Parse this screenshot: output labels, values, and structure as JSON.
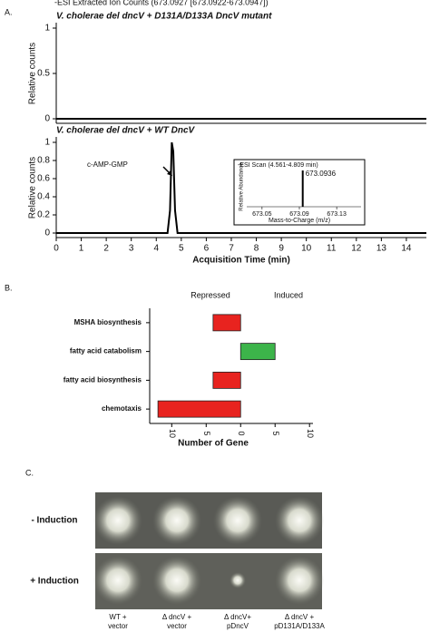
{
  "chart_data": [
    {
      "type": "line",
      "title": "-ESI Extracted Ion Counts (673.0927 [673.0922-673.0947])",
      "subtitle": "V. cholerae del dncV + D131A/D133A DncV mutant",
      "y_label": "Relative counts",
      "x": [
        0,
        14.8
      ],
      "values": [
        0,
        0
      ],
      "xlim": [
        0,
        14.8
      ],
      "ylim": [
        0,
        1
      ],
      "yticks": [
        0,
        0.5,
        1
      ]
    },
    {
      "type": "line",
      "subtitle": "V. cholerae del dncV + WT DncV",
      "y_label": "Relative counts",
      "x_label": "Acquisition Time (min)",
      "annotation": "c-AMP-GMP",
      "x": [
        0,
        4.45,
        4.55,
        4.62,
        4.68,
        4.75,
        4.85,
        14.8
      ],
      "values": [
        0,
        0,
        0.25,
        1,
        0.9,
        0.25,
        0,
        0
      ],
      "xlim": [
        0,
        14.8
      ],
      "ylim": [
        0,
        1
      ],
      "xticks": [
        0,
        1,
        2,
        3,
        4,
        5,
        6,
        7,
        8,
        9,
        10,
        11,
        12,
        13,
        14
      ],
      "yticks": [
        0,
        0.2,
        0.4,
        0.6,
        0.8,
        1
      ]
    },
    {
      "type": "stem",
      "title": "-ESI Scan (4.561-4.809 min)",
      "x_label": "Mass-to-Charge (m/z)",
      "y_label": "Relative Abundance",
      "annotation": "673.0936",
      "x": [
        673.0936
      ],
      "values": [
        1
      ],
      "xlim": [
        673.02,
        673.16
      ],
      "ylim": [
        0,
        1.1
      ],
      "xticks": [
        673.05,
        673.09,
        673.13
      ]
    },
    {
      "type": "bar",
      "orientation": "horizontal",
      "x_label": "Number of Gene",
      "annotations": [
        "Repressed",
        "Induced"
      ],
      "categories": [
        "MSHA biosynthesis",
        "fatty acid catabolism",
        "fatty acid biosynthesis",
        "chemotaxis"
      ],
      "values": [
        -4,
        5,
        -4,
        -12
      ],
      "colors": [
        "#e8231f",
        "#3cb44a",
        "#e8231f",
        "#e8231f"
      ],
      "xlim": [
        -13.2,
        10.5
      ],
      "xticks": [
        {
          "value": -10,
          "label": "10"
        },
        {
          "value": -5,
          "label": "5"
        },
        0,
        5,
        10
      ]
    }
  ],
  "panel_labels": [
    "A.",
    "B.",
    "C."
  ],
  "panel_c": {
    "row_labels": [
      "- Induction",
      "+ Induction"
    ],
    "column_labels": [
      [
        "WT +",
        "vector"
      ],
      [
        "Δ dncV +",
        "vector"
      ],
      [
        "Δ dncV+",
        "pDncV"
      ],
      [
        "Δ dncV +",
        "pD131A/D133A"
      ]
    ]
  }
}
